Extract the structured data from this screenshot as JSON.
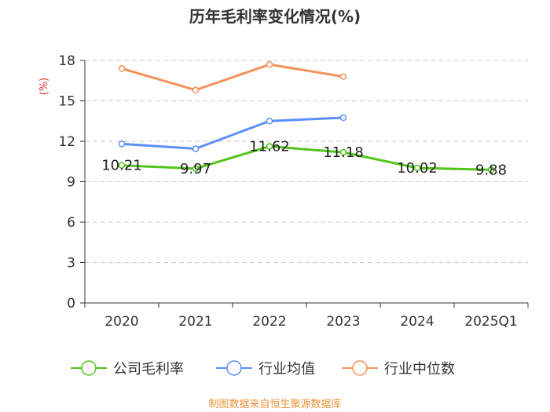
{
  "chart_data": {
    "type": "line",
    "title": "历年毛利率变化情况(%)",
    "ylabel": "(%)",
    "xlabel": "",
    "ylim": [
      0,
      18
    ],
    "yticks": [
      0,
      3,
      6,
      9,
      12,
      15,
      18
    ],
    "categories": [
      "2020",
      "2021",
      "2022",
      "2023",
      "2024",
      "2025Q1"
    ],
    "grid": true,
    "legend_position": "bottom",
    "series": [
      {
        "name": "公司毛利率",
        "color": "#52c41a",
        "values": [
          10.21,
          9.97,
          11.62,
          11.18,
          10.02,
          9.88
        ],
        "labels": [
          "10.21",
          "9.97",
          "11.62",
          "11.18",
          "10.02",
          "9.88"
        ]
      },
      {
        "name": "行业均值",
        "color": "#5b8ff9",
        "values": [
          11.8,
          11.45,
          13.5,
          13.75,
          null,
          null
        ]
      },
      {
        "name": "行业中位数",
        "color": "#f6915a",
        "values": [
          17.4,
          15.8,
          17.7,
          16.8,
          null,
          null
        ]
      }
    ],
    "source": "制图数据来自恒生聚源数据库",
    "source_color": "#e8913a",
    "ylabel_color": "#e8302a"
  }
}
